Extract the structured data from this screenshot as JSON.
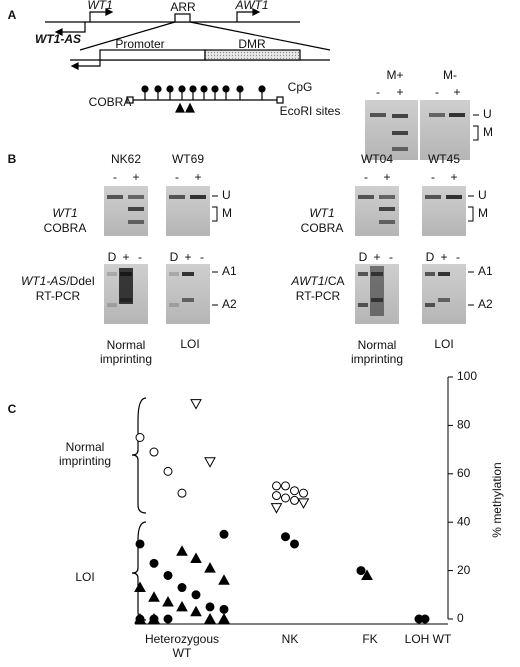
{
  "panel_a": {
    "label": "A",
    "diagram": {
      "wt1": "WT1",
      "arr": "ARR",
      "awt1": "AWT1",
      "wt1_as": "WT1-AS",
      "promoter": "Promoter",
      "dmr": "DMR",
      "cobra": "COBRA",
      "cpg": "CpG",
      "ecori": "EcoRI sites"
    },
    "gel": {
      "groups": [
        "M+",
        "M-"
      ],
      "lanes": [
        "-",
        "+",
        "-",
        "+"
      ],
      "bands": [
        "U",
        "M"
      ]
    }
  },
  "panel_b": {
    "label": "B",
    "samples": [
      "NK62",
      "WT69",
      "WT04",
      "WT45"
    ],
    "cobra_label": {
      "gene": "WT1",
      "method": "COBRA"
    },
    "cobra_lanes": [
      "-",
      "+"
    ],
    "cobra_bands": [
      "U",
      "M"
    ],
    "rt_left": {
      "gene": "WT1-AS",
      "assay": "/DdeI",
      "method": "RT-PCR"
    },
    "rt_right": {
      "gene": "AWT1",
      "assay": "/CA",
      "method": "RT-PCR"
    },
    "rt_lanes": [
      "D",
      "+",
      "-"
    ],
    "rt_bands": [
      "A1",
      "A2"
    ],
    "status": [
      "Normal imprinting",
      "LOI"
    ]
  },
  "chart_data": {
    "type": "scatter",
    "panel_label": "C",
    "y_label": "% methylation",
    "categories": [
      "Heterozygous WT",
      "NK",
      "FK",
      "LOH WT"
    ],
    "ylim": [
      0,
      100
    ],
    "yticks": [
      0,
      20,
      40,
      60,
      80,
      100
    ],
    "annotations": [
      "Normal imprinting",
      "LOI"
    ],
    "series": [
      {
        "marker": "open-circle",
        "color": "#000000",
        "x": [
          "Heterozygous WT",
          "Heterozygous WT",
          "Heterozygous WT",
          "Heterozygous WT",
          "NK",
          "NK",
          "NK",
          "NK",
          "NK",
          "NK",
          "NK"
        ],
        "values": [
          75,
          69,
          61,
          52,
          55,
          55,
          53,
          52,
          51,
          50,
          49
        ]
      },
      {
        "marker": "open-triangle",
        "color": "#000000",
        "x": [
          "Heterozygous WT",
          "Heterozygous WT",
          "NK",
          "NK"
        ],
        "values": [
          89,
          65,
          48,
          46
        ]
      },
      {
        "marker": "filled-circle",
        "color": "#000000",
        "x": [
          "Heterozygous WT",
          "Heterozygous WT",
          "Heterozygous WT",
          "Heterozygous WT",
          "Heterozygous WT",
          "Heterozygous WT",
          "Heterozygous WT",
          "Heterozygous WT",
          "Heterozygous WT",
          "Heterozygous WT",
          "Heterozygous WT",
          "NK",
          "NK",
          "FK",
          "LOH WT",
          "LOH WT"
        ],
        "values": [
          35,
          31,
          23,
          18,
          13,
          10,
          5,
          4,
          0,
          0,
          0,
          34,
          31,
          20,
          0,
          0
        ]
      },
      {
        "marker": "filled-triangle",
        "color": "#000000",
        "x": [
          "Heterozygous WT",
          "Heterozygous WT",
          "Heterozygous WT",
          "Heterozygous WT",
          "Heterozygous WT",
          "Heterozygous WT",
          "Heterozygous WT",
          "Heterozygous WT",
          "Heterozygous WT",
          "Heterozygous WT",
          "Heterozygous WT",
          "Heterozygous WT",
          "Heterozygous WT",
          "FK"
        ],
        "values": [
          28,
          25,
          21,
          16,
          13,
          9,
          7,
          5,
          3,
          0,
          0,
          0,
          0,
          18
        ]
      }
    ]
  }
}
